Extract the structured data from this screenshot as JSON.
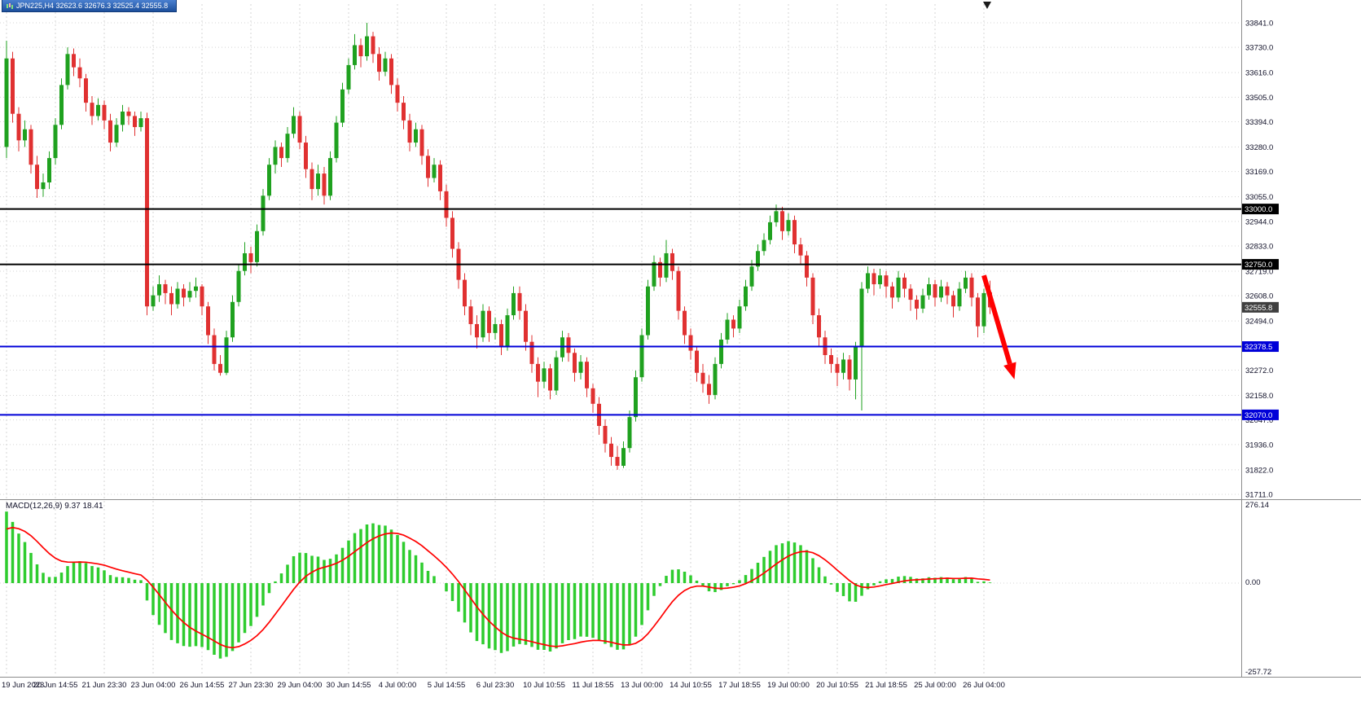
{
  "window": {
    "title": "JPN225,H4 32623.6 32676.3 32525.4 32555.8",
    "symbol": "JPN225",
    "timeframe": "H4"
  },
  "colors": {
    "background": "#ffffff",
    "grid": "#d4d4d4",
    "axis_text": "#101028",
    "bull": "#1fa11f",
    "bear": "#e03131",
    "macd_histogram": "#2ecc2e",
    "macd_signal": "#ff0000",
    "black_level": "#000000",
    "blue_level": "#0000d8",
    "badge_current": "#3f3f3f",
    "arrow": "#ff0000"
  },
  "chart_data": {
    "type": "candlestick",
    "title": "JPN225,H4",
    "ohlc_current": {
      "open": 32623.6,
      "high": 32676.3,
      "low": 32525.4,
      "close": 32555.8
    },
    "ylim": [
      31711,
      33841
    ],
    "price_axis_labels": [
      "33841.0",
      "33730.0",
      "33616.0",
      "33505.0",
      "33394.0",
      "33280.0",
      "33169.0",
      "33055.0",
      "32944.0",
      "32833.0",
      "32719.0",
      "32608.0",
      "32494.0",
      "32272.0",
      "32158.0",
      "32047.0",
      "31936.0",
      "31822.0",
      "31711.0"
    ],
    "time_label_step": 8,
    "time_labels": [
      "19 Jun 2023",
      "20 Jun 14:55",
      "21 Jun 23:30",
      "23 Jun 04:00",
      "26 Jun 14:55",
      "27 Jun 23:30",
      "29 Jun 04:00",
      "30 Jun 14:55",
      "4 Jul 00:00",
      "5 Jul 14:55",
      "6 Jul 23:30",
      "10 Jul 10:55",
      "11 Jul 18:55",
      "13 Jul 00:00",
      "14 Jul 10:55",
      "17 Jul 18:55",
      "19 Jul 00:00",
      "20 Jul 10:55",
      "21 Jul 18:55",
      "25 Jul 00:00",
      "26 Jul 04:00"
    ],
    "price_lines": [
      {
        "value": 33000.0,
        "label": "33000.0",
        "color": "#000000",
        "line": true,
        "width": 2
      },
      {
        "value": 32750.0,
        "label": "32750.0",
        "color": "#000000",
        "line": true,
        "width": 2
      },
      {
        "value": 32555.8,
        "label": "32555.8",
        "color": "#3f3f3f",
        "line": false,
        "width": 0
      },
      {
        "value": 32378.5,
        "label": "32378.5",
        "color": "#0000d8",
        "line": true,
        "width": 2
      },
      {
        "value": 32070.0,
        "label": "32070.0",
        "color": "#0000d8",
        "line": true,
        "width": 2
      }
    ],
    "candles": [
      [
        33280,
        33760,
        33230,
        33680
      ],
      [
        33680,
        33710,
        33390,
        33430
      ],
      [
        33430,
        33460,
        33260,
        33310
      ],
      [
        33310,
        33400,
        33280,
        33360
      ],
      [
        33360,
        33380,
        33160,
        33200
      ],
      [
        33200,
        33240,
        33050,
        33090
      ],
      [
        33090,
        33160,
        33055,
        33120
      ],
      [
        33120,
        33260,
        33090,
        33230
      ],
      [
        33230,
        33410,
        33200,
        33380
      ],
      [
        33380,
        33590,
        33360,
        33560
      ],
      [
        33560,
        33730,
        33540,
        33700
      ],
      [
        33700,
        33725,
        33600,
        33640
      ],
      [
        33640,
        33680,
        33550,
        33590
      ],
      [
        33590,
        33610,
        33440,
        33480
      ],
      [
        33480,
        33510,
        33380,
        33420
      ],
      [
        33420,
        33500,
        33400,
        33470
      ],
      [
        33470,
        33490,
        33360,
        33400
      ],
      [
        33400,
        33430,
        33260,
        33300
      ],
      [
        33300,
        33410,
        33280,
        33380
      ],
      [
        33380,
        33470,
        33350,
        33440
      ],
      [
        33440,
        33460,
        33380,
        33420
      ],
      [
        33420,
        33440,
        33330,
        33370
      ],
      [
        33370,
        33440,
        33350,
        33410
      ],
      [
        33410,
        33435,
        32520,
        32560
      ],
      [
        32560,
        32650,
        32540,
        32610
      ],
      [
        32610,
        32700,
        32580,
        32660
      ],
      [
        32660,
        32680,
        32570,
        32620
      ],
      [
        32620,
        32650,
        32520,
        32570
      ],
      [
        32570,
        32670,
        32550,
        32640
      ],
      [
        32640,
        32660,
        32560,
        32600
      ],
      [
        32600,
        32670,
        32580,
        32630
      ],
      [
        32630,
        32690,
        32600,
        32650
      ],
      [
        32650,
        32660,
        32520,
        32560
      ],
      [
        32560,
        32580,
        32390,
        32430
      ],
      [
        32430,
        32460,
        32270,
        32300
      ],
      [
        32300,
        32340,
        32247,
        32260
      ],
      [
        32260,
        32450,
        32250,
        32420
      ],
      [
        32420,
        32610,
        32400,
        32580
      ],
      [
        32580,
        32750,
        32560,
        32720
      ],
      [
        32720,
        32850,
        32700,
        32800
      ],
      [
        32800,
        32830,
        32710,
        32760
      ],
      [
        32760,
        32930,
        32740,
        32900
      ],
      [
        32900,
        33090,
        32880,
        33060
      ],
      [
        33060,
        33230,
        33040,
        33200
      ],
      [
        33200,
        33310,
        33160,
        33280
      ],
      [
        33280,
        33300,
        33190,
        33230
      ],
      [
        33230,
        33370,
        33210,
        33340
      ],
      [
        33340,
        33460,
        33320,
        33420
      ],
      [
        33420,
        33440,
        33270,
        33300
      ],
      [
        33300,
        33330,
        33140,
        33180
      ],
      [
        33180,
        33210,
        33040,
        33090
      ],
      [
        33090,
        33200,
        33060,
        33160
      ],
      [
        33160,
        33190,
        33020,
        33060
      ],
      [
        33060,
        33260,
        33040,
        33230
      ],
      [
        33230,
        33420,
        33210,
        33390
      ],
      [
        33390,
        33570,
        33370,
        33540
      ],
      [
        33540,
        33680,
        33520,
        33650
      ],
      [
        33650,
        33790,
        33630,
        33740
      ],
      [
        33740,
        33770,
        33640,
        33690
      ],
      [
        33690,
        33841,
        33670,
        33780
      ],
      [
        33780,
        33800,
        33660,
        33700
      ],
      [
        33700,
        33730,
        33580,
        33620
      ],
      [
        33620,
        33710,
        33600,
        33680
      ],
      [
        33680,
        33700,
        33520,
        33560
      ],
      [
        33560,
        33590,
        33440,
        33480
      ],
      [
        33480,
        33510,
        33360,
        33400
      ],
      [
        33400,
        33430,
        33260,
        33300
      ],
      [
        33300,
        33390,
        33280,
        33360
      ],
      [
        33360,
        33380,
        33200,
        33240
      ],
      [
        33240,
        33270,
        33100,
        33140
      ],
      [
        33140,
        33230,
        33120,
        33200
      ],
      [
        33200,
        33220,
        33040,
        33080
      ],
      [
        33080,
        33110,
        32920,
        32960
      ],
      [
        32960,
        32990,
        32780,
        32820
      ],
      [
        32820,
        32850,
        32640,
        32680
      ],
      [
        32680,
        32710,
        32520,
        32560
      ],
      [
        32560,
        32590,
        32430,
        32480
      ],
      [
        32480,
        32520,
        32370,
        32420
      ],
      [
        32420,
        32570,
        32400,
        32540
      ],
      [
        32540,
        32560,
        32400,
        32440
      ],
      [
        32440,
        32510,
        32410,
        32480
      ],
      [
        32480,
        32500,
        32340,
        32380
      ],
      [
        32380,
        32550,
        32360,
        32520
      ],
      [
        32520,
        32650,
        32500,
        32620
      ],
      [
        32620,
        32650,
        32500,
        32540
      ],
      [
        32540,
        32570,
        32360,
        32400
      ],
      [
        32400,
        32430,
        32260,
        32300
      ],
      [
        32300,
        32330,
        32150,
        32220
      ],
      [
        32220,
        32310,
        32190,
        32280
      ],
      [
        32280,
        32300,
        32140,
        32180
      ],
      [
        32180,
        32360,
        32160,
        32330
      ],
      [
        32330,
        32450,
        32310,
        32420
      ],
      [
        32420,
        32440,
        32310,
        32350
      ],
      [
        32350,
        32370,
        32220,
        32260
      ],
      [
        32260,
        32340,
        32230,
        32310
      ],
      [
        32310,
        32330,
        32150,
        32190
      ],
      [
        32190,
        32210,
        32080,
        32120
      ],
      [
        32120,
        32150,
        31980,
        32020
      ],
      [
        32020,
        32050,
        31900,
        31940
      ],
      [
        31940,
        31970,
        31840,
        31880
      ],
      [
        31880,
        31930,
        31822,
        31840
      ],
      [
        31840,
        31950,
        31830,
        31920
      ],
      [
        31920,
        32090,
        31900,
        32060
      ],
      [
        32060,
        32270,
        32040,
        32240
      ],
      [
        32240,
        32460,
        32220,
        32430
      ],
      [
        32430,
        32680,
        32410,
        32650
      ],
      [
        32650,
        32790,
        32630,
        32760
      ],
      [
        32760,
        32780,
        32650,
        32690
      ],
      [
        32690,
        32860,
        32670,
        32800
      ],
      [
        32800,
        32820,
        32680,
        32720
      ],
      [
        32720,
        32740,
        32500,
        32540
      ],
      [
        32540,
        32560,
        32390,
        32430
      ],
      [
        32430,
        32460,
        32320,
        32360
      ],
      [
        32360,
        32380,
        32220,
        32260
      ],
      [
        32260,
        32300,
        32170,
        32210
      ],
      [
        32210,
        32250,
        32120,
        32160
      ],
      [
        32160,
        32330,
        32140,
        32300
      ],
      [
        32300,
        32440,
        32280,
        32410
      ],
      [
        32410,
        32530,
        32390,
        32500
      ],
      [
        32500,
        32520,
        32420,
        32460
      ],
      [
        32460,
        32590,
        32440,
        32560
      ],
      [
        32560,
        32680,
        32540,
        32650
      ],
      [
        32650,
        32770,
        32630,
        32740
      ],
      [
        32740,
        32840,
        32720,
        32810
      ],
      [
        32810,
        32890,
        32790,
        32860
      ],
      [
        32860,
        32970,
        32840,
        32940
      ],
      [
        32940,
        33020,
        32920,
        32990
      ],
      [
        32990,
        33010,
        32860,
        32900
      ],
      [
        32900,
        32980,
        32880,
        32950
      ],
      [
        32950,
        32970,
        32800,
        32840
      ],
      [
        32840,
        32870,
        32750,
        32790
      ],
      [
        32790,
        32810,
        32650,
        32690
      ],
      [
        32690,
        32710,
        32480,
        32520
      ],
      [
        32520,
        32550,
        32380,
        32420
      ],
      [
        32420,
        32450,
        32300,
        32340
      ],
      [
        32340,
        32370,
        32260,
        32300
      ],
      [
        32300,
        32330,
        32200,
        32260
      ],
      [
        32260,
        32350,
        32230,
        32320
      ],
      [
        32320,
        32340,
        32180,
        32230
      ],
      [
        32230,
        32400,
        32140,
        32380
      ],
      [
        32380,
        32670,
        32090,
        32640
      ],
      [
        32640,
        32740,
        32620,
        32710
      ],
      [
        32710,
        32730,
        32610,
        32660
      ],
      [
        32660,
        32730,
        32640,
        32700
      ],
      [
        32700,
        32720,
        32600,
        32650
      ],
      [
        32650,
        32670,
        32550,
        32600
      ],
      [
        32600,
        32720,
        32580,
        32690
      ],
      [
        32690,
        32710,
        32600,
        32640
      ],
      [
        32640,
        32660,
        32540,
        32590
      ],
      [
        32590,
        32610,
        32500,
        32550
      ],
      [
        32550,
        32640,
        32530,
        32610
      ],
      [
        32610,
        32690,
        32590,
        32660
      ],
      [
        32660,
        32680,
        32560,
        32600
      ],
      [
        32600,
        32680,
        32580,
        32650
      ],
      [
        32650,
        32670,
        32570,
        32610
      ],
      [
        32610,
        32630,
        32510,
        32560
      ],
      [
        32560,
        32670,
        32540,
        32640
      ],
      [
        32640,
        32720,
        32620,
        32690
      ],
      [
        32690,
        32710,
        32560,
        32600
      ],
      [
        32600,
        32620,
        32420,
        32470
      ],
      [
        32470,
        32640,
        32440,
        32620
      ],
      [
        32623.6,
        32676.3,
        32525.4,
        32555.8
      ]
    ],
    "macd": {
      "label_full": "MACD(12,26,9) 9.37 18.41",
      "name": "MACD",
      "params": "12,26,9",
      "main_value": 9.37,
      "signal_value": 18.41,
      "axis": {
        "max": "276.14",
        "zero": "0.00",
        "min": "-257.72"
      }
    },
    "annotation": {
      "type": "arrow",
      "color": "#ff0000",
      "from_bar": 160,
      "from_price": 32700,
      "to_bar": 165,
      "to_price": 32230
    }
  }
}
